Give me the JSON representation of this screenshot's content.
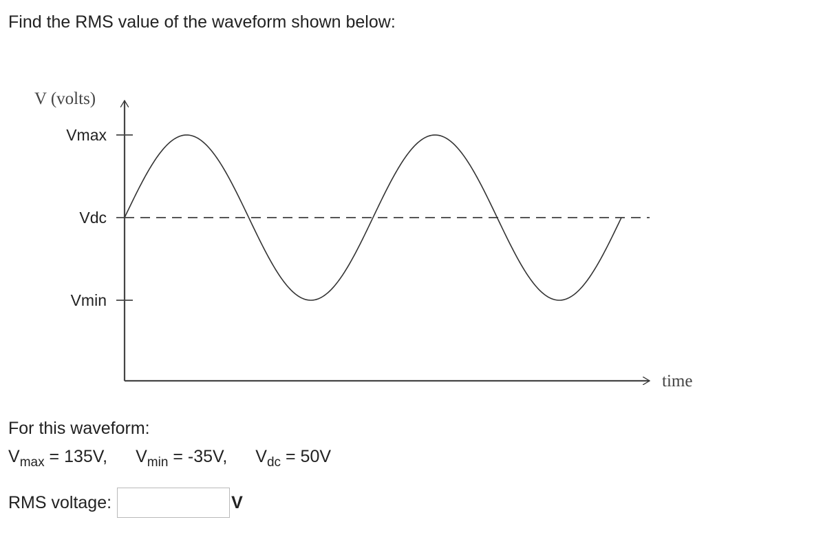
{
  "question": "Find the RMS value of the waveform shown below:",
  "chart_data": {
    "type": "line",
    "ylabel": "V (volts)",
    "xlabel": "time",
    "yticks": [
      "Vmax",
      "Vdc",
      "Vmin"
    ],
    "y_values": {
      "Vmax": 135,
      "Vdc": 50,
      "Vmin": -35
    },
    "cycles": 2,
    "series": [
      {
        "name": "",
        "shape": "sine",
        "offset": 50,
        "amplitude": 85,
        "cycles": 2
      },
      {
        "name": "",
        "shape": "dashed-level",
        "value": 50
      }
    ],
    "ylim": [
      -35,
      135
    ]
  },
  "given": {
    "title": "For this waveform:",
    "vmax": {
      "sym": "V",
      "sub": "max",
      "val": " = 135V,"
    },
    "vmin": {
      "sym": "V",
      "sub": "min",
      "val": " = -35V,"
    },
    "vdc": {
      "sym": "V",
      "sub": "dc",
      "val": " = 50V"
    }
  },
  "answer": {
    "label": "RMS voltage:",
    "value": "",
    "unit": "V"
  }
}
